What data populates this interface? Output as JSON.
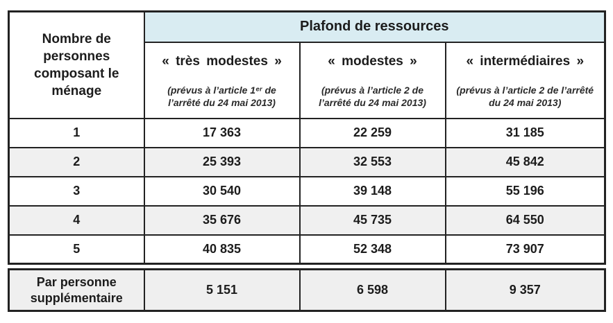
{
  "colors": {
    "header_band_bg": "#d9ecf2",
    "stripe_bg": "#f0f0f0",
    "border": "#222222",
    "text": "#1c1c1c"
  },
  "table": {
    "row_axis_title": "Nombre de personnes composant le ménage",
    "main_header": "Plafond de ressources",
    "categories": [
      {
        "label": "«  très modestes  »",
        "note": "(prévus à l’article 1ᵉʳ de l’arrêté du 24 mai 2013)"
      },
      {
        "label": "«  modestes  »",
        "note": "(prévus à l’article 2 de l’arrêté du 24 mai 2013)"
      },
      {
        "label": "«  intermédiaires  »",
        "note": "(prévus à l’article 2 de l’arrêté du 24 mai 2013)"
      }
    ],
    "rows": [
      {
        "label": "1",
        "values": [
          "17 363",
          "22 259",
          "31 185"
        ]
      },
      {
        "label": "2",
        "values": [
          "25 393",
          "32 553",
          "45 842"
        ]
      },
      {
        "label": "3",
        "values": [
          "30 540",
          "39 148",
          "55 196"
        ]
      },
      {
        "label": "4",
        "values": [
          "35 676",
          "45 735",
          "64 550"
        ]
      },
      {
        "label": "5",
        "values": [
          "40 835",
          "52 348",
          "73 907"
        ]
      }
    ],
    "footer_row": {
      "label": "Par personne supplémentaire",
      "values": [
        "5 151",
        "6 598",
        "9 357"
      ]
    }
  }
}
